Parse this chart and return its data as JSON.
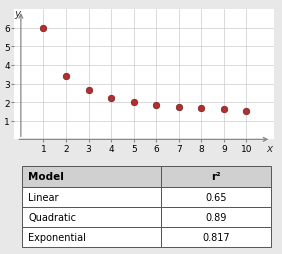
{
  "scatter_x": [
    1,
    2,
    3,
    4,
    5,
    6,
    7,
    8,
    9,
    10
  ],
  "scatter_y": [
    6.0,
    3.4,
    2.65,
    2.2,
    2.0,
    1.85,
    1.75,
    1.7,
    1.62,
    1.55
  ],
  "dot_color": "#b03030",
  "dot_edgecolor": "#7a1a1a",
  "dot_size": 22,
  "xlim": [
    -0.3,
    11.2
  ],
  "ylim": [
    0.0,
    7.0
  ],
  "xticks": [
    1,
    2,
    3,
    4,
    5,
    6,
    7,
    8,
    9,
    10
  ],
  "yticks": [
    1,
    2,
    3,
    4,
    5,
    6
  ],
  "grid_color": "#cccccc",
  "plot_bg": "#ffffff",
  "fig_bg": "#e8e8e8",
  "table_headers": [
    "Model",
    "r²"
  ],
  "table_rows": [
    [
      "Linear",
      "0.65"
    ],
    [
      "Quadratic",
      "0.89"
    ],
    [
      "Exponential",
      "0.817"
    ]
  ],
  "tick_fontsize": 6.5,
  "axis_label_fontsize": 7.5
}
